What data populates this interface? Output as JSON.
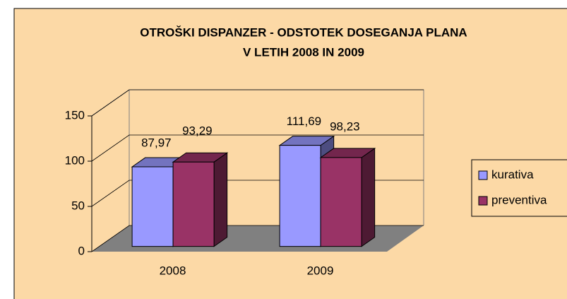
{
  "chart_data": {
    "type": "bar3d",
    "title": [
      "OTROŠKI DISPANZER - ODSTOTEK DOSEGANJA PLANA",
      "V LETIH 2008 IN 2009"
    ],
    "categories": [
      "2008",
      "2009"
    ],
    "series": [
      {
        "name": "kurativa",
        "color": "#9999ff",
        "values": [
          87.97,
          111.69
        ],
        "value_labels": [
          "87,97",
          "111,69"
        ]
      },
      {
        "name": "preventiva",
        "color": "#993366",
        "values": [
          93.29,
          98.23
        ],
        "value_labels": [
          "93,29",
          "98,23"
        ]
      }
    ],
    "ylim": [
      0,
      150
    ],
    "yticks": [
      0,
      50,
      100,
      150
    ],
    "grid": true,
    "legend": "right"
  }
}
